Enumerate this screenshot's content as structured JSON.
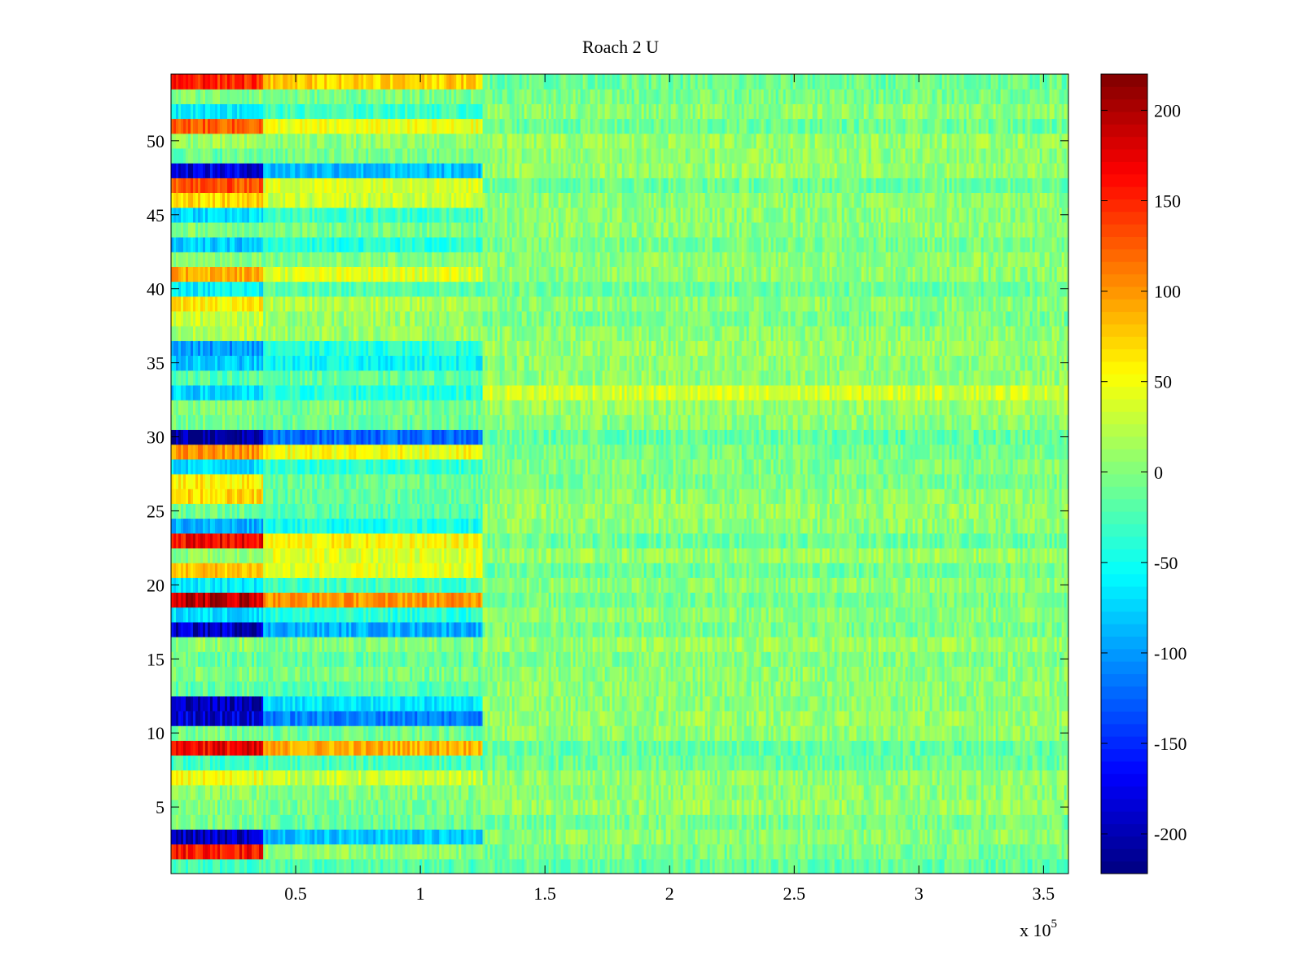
{
  "chart_data": {
    "type": "heatmap",
    "title": "Roach 2 U",
    "xlabel": "",
    "ylabel": "",
    "x_multiplier_label": {
      "base": "x 10",
      "exponent": "5"
    },
    "xlim": [
      0,
      3.6
    ],
    "ylim": [
      0.5,
      54.5
    ],
    "n_rows": 54,
    "x_ticks": [
      {
        "value": 0.5,
        "label": "0.5"
      },
      {
        "value": 1.0,
        "label": "1"
      },
      {
        "value": 1.5,
        "label": "1.5"
      },
      {
        "value": 2.0,
        "label": "2"
      },
      {
        "value": 2.5,
        "label": "2.5"
      },
      {
        "value": 3.0,
        "label": "3"
      },
      {
        "value": 3.5,
        "label": "3.5"
      }
    ],
    "y_ticks": [
      {
        "value": 5,
        "label": "5"
      },
      {
        "value": 10,
        "label": "10"
      },
      {
        "value": 15,
        "label": "15"
      },
      {
        "value": 20,
        "label": "20"
      },
      {
        "value": 25,
        "label": "25"
      },
      {
        "value": 30,
        "label": "30"
      },
      {
        "value": 35,
        "label": "35"
      },
      {
        "value": 40,
        "label": "40"
      },
      {
        "value": 45,
        "label": "45"
      },
      {
        "value": 50,
        "label": "50"
      }
    ],
    "colorbar": {
      "colormap": "jet",
      "clim": [
        -222,
        220
      ],
      "ticks": [
        {
          "value": 200,
          "label": "200"
        },
        {
          "value": 150,
          "label": "150"
        },
        {
          "value": 100,
          "label": "100"
        },
        {
          "value": 50,
          "label": "50"
        },
        {
          "value": 0,
          "label": "0"
        },
        {
          "value": -50,
          "label": "-50"
        },
        {
          "value": -100,
          "label": "-100"
        },
        {
          "value": -150,
          "label": "-150"
        },
        {
          "value": -200,
          "label": "-200"
        }
      ]
    },
    "segments_x_edges": [
      0,
      0.37,
      1.25,
      3.6
    ],
    "rows": [
      {
        "row": 1,
        "segment_means": [
          -30,
          -20,
          -15
        ]
      },
      {
        "row": 2,
        "segment_means": [
          160,
          5,
          -5
        ]
      },
      {
        "row": 3,
        "segment_means": [
          -190,
          -80,
          5
        ]
      },
      {
        "row": 4,
        "segment_means": [
          -5,
          -10,
          -5
        ]
      },
      {
        "row": 5,
        "segment_means": [
          0,
          -5,
          10
        ]
      },
      {
        "row": 6,
        "segment_means": [
          5,
          0,
          5
        ]
      },
      {
        "row": 7,
        "segment_means": [
          50,
          30,
          5
        ]
      },
      {
        "row": 8,
        "segment_means": [
          -30,
          -25,
          -10
        ]
      },
      {
        "row": 9,
        "segment_means": [
          170,
          90,
          -15
        ]
      },
      {
        "row": 10,
        "segment_means": [
          -5,
          -10,
          5
        ]
      },
      {
        "row": 11,
        "segment_means": [
          -185,
          -110,
          10
        ]
      },
      {
        "row": 12,
        "segment_means": [
          -200,
          -65,
          5
        ]
      },
      {
        "row": 13,
        "segment_means": [
          -15,
          -20,
          5
        ]
      },
      {
        "row": 14,
        "segment_means": [
          0,
          -5,
          5
        ]
      },
      {
        "row": 15,
        "segment_means": [
          -10,
          -15,
          0
        ]
      },
      {
        "row": 16,
        "segment_means": [
          5,
          0,
          10
        ]
      },
      {
        "row": 17,
        "segment_means": [
          -190,
          -90,
          -5
        ]
      },
      {
        "row": 18,
        "segment_means": [
          -70,
          -40,
          5
        ]
      },
      {
        "row": 19,
        "segment_means": [
          195,
          100,
          -5
        ]
      },
      {
        "row": 20,
        "segment_means": [
          -60,
          -30,
          5
        ]
      },
      {
        "row": 21,
        "segment_means": [
          80,
          40,
          -10
        ]
      },
      {
        "row": 22,
        "segment_means": [
          5,
          40,
          10
        ]
      },
      {
        "row": 23,
        "segment_means": [
          165,
          55,
          -10
        ]
      },
      {
        "row": 24,
        "segment_means": [
          -90,
          -45,
          5
        ]
      },
      {
        "row": 25,
        "segment_means": [
          -10,
          -20,
          10
        ]
      },
      {
        "row": 26,
        "segment_means": [
          70,
          -15,
          5
        ]
      },
      {
        "row": 27,
        "segment_means": [
          60,
          -10,
          -5
        ]
      },
      {
        "row": 28,
        "segment_means": [
          -70,
          -35,
          0
        ]
      },
      {
        "row": 29,
        "segment_means": [
          100,
          50,
          -5
        ]
      },
      {
        "row": 30,
        "segment_means": [
          -215,
          -120,
          -15
        ]
      },
      {
        "row": 31,
        "segment_means": [
          -5,
          -10,
          5
        ]
      },
      {
        "row": 32,
        "segment_means": [
          0,
          -5,
          10
        ]
      },
      {
        "row": 33,
        "segment_means": [
          -75,
          -40,
          35
        ]
      },
      {
        "row": 34,
        "segment_means": [
          -20,
          -15,
          5
        ]
      },
      {
        "row": 35,
        "segment_means": [
          -80,
          -55,
          5
        ]
      },
      {
        "row": 36,
        "segment_means": [
          -100,
          -40,
          10
        ]
      },
      {
        "row": 37,
        "segment_means": [
          20,
          10,
          5
        ]
      },
      {
        "row": 38,
        "segment_means": [
          30,
          10,
          -5
        ]
      },
      {
        "row": 39,
        "segment_means": [
          60,
          20,
          5
        ]
      },
      {
        "row": 40,
        "segment_means": [
          -60,
          -20,
          -10
        ]
      },
      {
        "row": 41,
        "segment_means": [
          90,
          40,
          5
        ]
      },
      {
        "row": 42,
        "segment_means": [
          5,
          0,
          5
        ]
      },
      {
        "row": 43,
        "segment_means": [
          -80,
          -40,
          -5
        ]
      },
      {
        "row": 44,
        "segment_means": [
          0,
          -5,
          5
        ]
      },
      {
        "row": 45,
        "segment_means": [
          -70,
          -30,
          5
        ]
      },
      {
        "row": 46,
        "segment_means": [
          70,
          30,
          5
        ]
      },
      {
        "row": 47,
        "segment_means": [
          130,
          40,
          -10
        ]
      },
      {
        "row": 48,
        "segment_means": [
          -180,
          -85,
          10
        ]
      },
      {
        "row": 49,
        "segment_means": [
          -10,
          -5,
          5
        ]
      },
      {
        "row": 50,
        "segment_means": [
          10,
          5,
          10
        ]
      },
      {
        "row": 51,
        "segment_means": [
          125,
          45,
          -10
        ]
      },
      {
        "row": 52,
        "segment_means": [
          -60,
          -30,
          5
        ]
      },
      {
        "row": 53,
        "segment_means": [
          0,
          -5,
          -5
        ]
      },
      {
        "row": 54,
        "segment_means": [
          150,
          75,
          -10
        ]
      }
    ]
  }
}
